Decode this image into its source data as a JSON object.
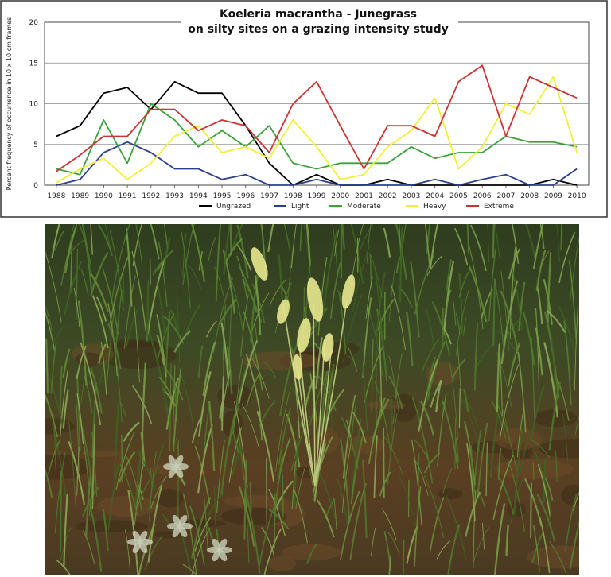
{
  "chart_data": {
    "type": "line",
    "title": "Koeleria macrantha  -  Junegrass",
    "title_species_italic": "Koeleria macrantha",
    "subtitle": "on silty sites on a grazing intensity study",
    "xlabel": "",
    "ylabel": "Percent frequency of occurrence in 10 x 10 cm frames",
    "ylim": [
      0,
      20
    ],
    "yticks": [
      "0",
      "5",
      "10",
      "15",
      "20"
    ],
    "x": [
      "1988",
      "1989",
      "1990",
      "1991",
      "1992",
      "1993",
      "1994",
      "1995",
      "1996",
      "1997",
      "1998",
      "1999",
      "2000",
      "2001",
      "2002",
      "2003",
      "2004",
      "2005",
      "2006",
      "2007",
      "2008",
      "2009",
      "2010"
    ],
    "grid": true,
    "legend_position": "bottom",
    "series": [
      {
        "name": "Ungrazed",
        "color": "#000000",
        "values": [
          6.0,
          7.3,
          11.3,
          12.0,
          9.3,
          12.7,
          11.3,
          11.3,
          7.3,
          2.7,
          0,
          1.3,
          0,
          0,
          0.7,
          0,
          0,
          0,
          0,
          0,
          0,
          0.7,
          0
        ]
      },
      {
        "name": "Light",
        "color": "#2b3f8f",
        "values": [
          0,
          0.7,
          4.0,
          5.3,
          4.0,
          2.0,
          2.0,
          0.7,
          1.3,
          0,
          0,
          0.7,
          0,
          0,
          0,
          0,
          0.7,
          0,
          0.7,
          1.3,
          0,
          0,
          2.0
        ]
      },
      {
        "name": "Moderate",
        "color": "#3aa23a",
        "values": [
          2.0,
          1.3,
          8.0,
          2.7,
          10.0,
          8.0,
          4.7,
          6.7,
          4.7,
          7.3,
          2.7,
          2.0,
          2.7,
          2.7,
          2.7,
          4.7,
          3.3,
          4.0,
          4.0,
          6.0,
          5.3,
          5.3,
          4.7
        ]
      },
      {
        "name": "Heavy",
        "color": "#f0f03a",
        "values": [
          0.3,
          2.0,
          3.3,
          0.7,
          2.7,
          6.0,
          7.3,
          4.0,
          4.7,
          3.3,
          8.0,
          4.7,
          0.7,
          1.3,
          4.7,
          6.7,
          10.7,
          2.0,
          4.7,
          10.0,
          8.7,
          13.3,
          4.0
        ]
      },
      {
        "name": "Extreme",
        "color": "#cc3333",
        "values": [
          1.7,
          3.7,
          6.0,
          6.0,
          9.3,
          9.3,
          6.7,
          8.0,
          7.3,
          4.0,
          10.0,
          12.7,
          7.3,
          2.0,
          7.3,
          7.3,
          6.0,
          12.7,
          14.7,
          6.0,
          13.3,
          12.0,
          10.7
        ]
      }
    ]
  },
  "photo": {
    "subject": "Junegrass plant with seed heads in grassland",
    "colors": {
      "soil": "#5a3f22",
      "grass": "#4f7a2c",
      "seedhead": "#e4e48c"
    }
  }
}
